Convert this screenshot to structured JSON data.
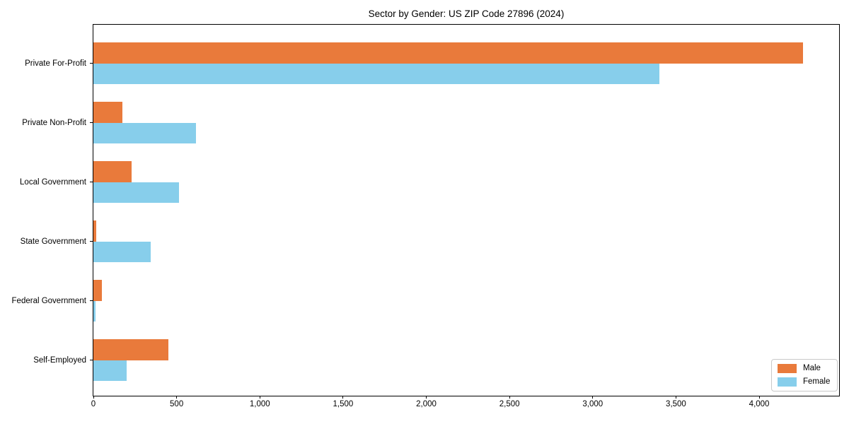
{
  "chart_data": {
    "type": "bar",
    "orientation": "horizontal",
    "title": "Sector by Gender: US ZIP Code 27896 (2024)",
    "xlabel": "",
    "ylabel": "",
    "categories": [
      "Private For-Profit",
      "Private Non-Profit",
      "Local Government",
      "State Government",
      "Federal Government",
      "Self-Employed"
    ],
    "series": [
      {
        "name": "Male",
        "color": "#e97a3b",
        "values": [
          4265,
          175,
          230,
          17,
          50,
          450
        ]
      },
      {
        "name": "Female",
        "color": "#87ceeb",
        "values": [
          3400,
          615,
          515,
          345,
          13,
          200
        ]
      }
    ],
    "xlim": [
      0,
      4480
    ],
    "x_ticks": [
      0,
      500,
      1000,
      1500,
      2000,
      2500,
      3000,
      3500,
      4000
    ],
    "x_tick_labels": [
      "0",
      "500",
      "1,000",
      "1,500",
      "2,000",
      "2,500",
      "3,000",
      "3,500",
      "4,000"
    ],
    "grid": false,
    "legend": {
      "position": "lower-right",
      "items": [
        "Male",
        "Female"
      ]
    },
    "colors": {
      "spine": "#000000",
      "background": "#ffffff",
      "legend_border": "#c9c9c9"
    }
  }
}
